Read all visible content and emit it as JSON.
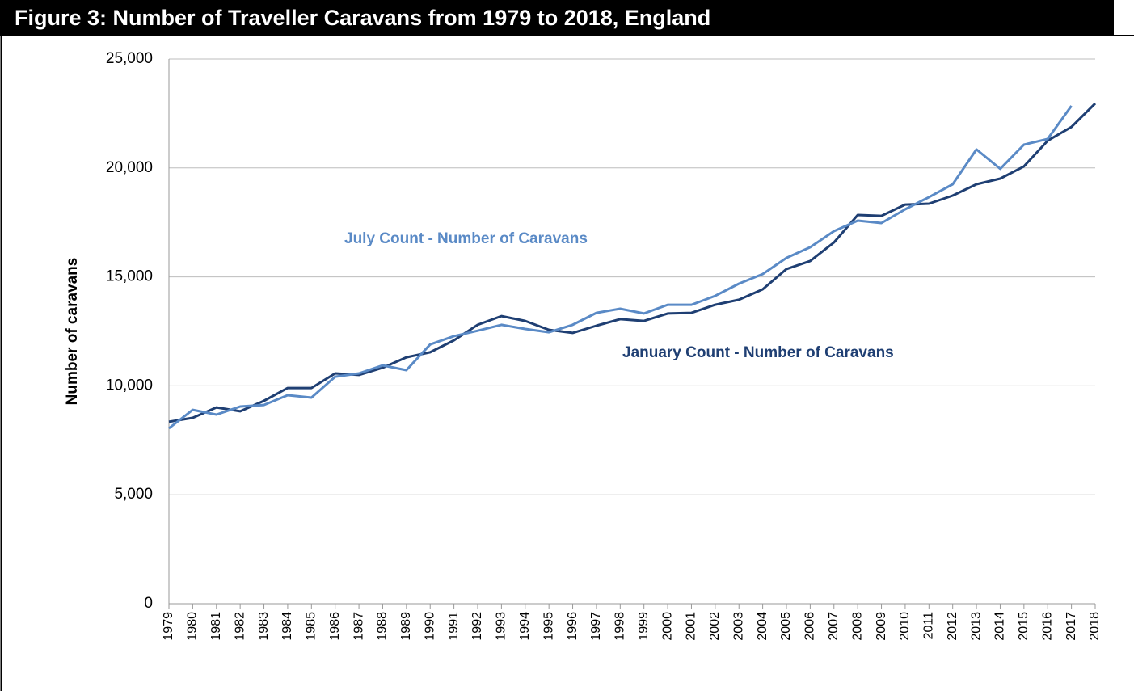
{
  "chart_data": {
    "type": "line",
    "title": "Figure 3: Number of Traveller Caravans from 1979 to 2018, England",
    "ylabel": "Number of caravans",
    "categories": [
      "1979",
      "1980",
      "1981",
      "1982",
      "1983",
      "1984",
      "1985",
      "1986",
      "1987",
      "1988",
      "1989",
      "1990",
      "1991",
      "1992",
      "1993",
      "1994",
      "1995",
      "1996",
      "1997",
      "1998",
      "1999",
      "2000",
      "2001",
      "2002",
      "2003",
      "2004",
      "2005",
      "2006",
      "2007",
      "2008",
      "2009",
      "2010",
      "2011",
      "2012",
      "2013",
      "2014",
      "2015",
      "2016",
      "2017",
      "2018"
    ],
    "series": [
      {
        "name": "January Count - Number of Caravans",
        "color": "#1f3f73",
        "values": [
          8350,
          8530,
          9010,
          8830,
          9310,
          9900,
          9900,
          10570,
          10500,
          10830,
          11310,
          11540,
          12090,
          12800,
          13200,
          12980,
          12570,
          12430,
          12760,
          13060,
          12980,
          13320,
          13350,
          13720,
          13950,
          14430,
          15360,
          15730,
          16580,
          17840,
          17800,
          18320,
          18360,
          18730,
          19250,
          19510,
          20070,
          21250,
          21880,
          22960
        ]
      },
      {
        "name": "July Count - Number of Caravans",
        "color": "#5a8ac6",
        "values": [
          8050,
          8900,
          8680,
          9050,
          9120,
          9570,
          9460,
          10420,
          10570,
          10940,
          10720,
          11900,
          12280,
          12530,
          12800,
          12610,
          12460,
          12800,
          13350,
          13540,
          13320,
          13720,
          13720,
          14130,
          14690,
          15130,
          15870,
          16360,
          17100,
          17580,
          17470,
          18100,
          18660,
          19250,
          20850,
          19960,
          21070,
          21330,
          22850,
          null
        ]
      }
    ],
    "ylim": [
      0,
      25000
    ],
    "yticks": [
      0,
      {
        "value": 5000,
        "label": "5,000"
      },
      {
        "value": 10000,
        "label": "10,000"
      },
      {
        "value": 15000,
        "label": "15,000"
      },
      {
        "value": 20000,
        "label": "20,000"
      },
      {
        "value": 25000,
        "label": "25,000"
      }
    ],
    "grid": true
  }
}
